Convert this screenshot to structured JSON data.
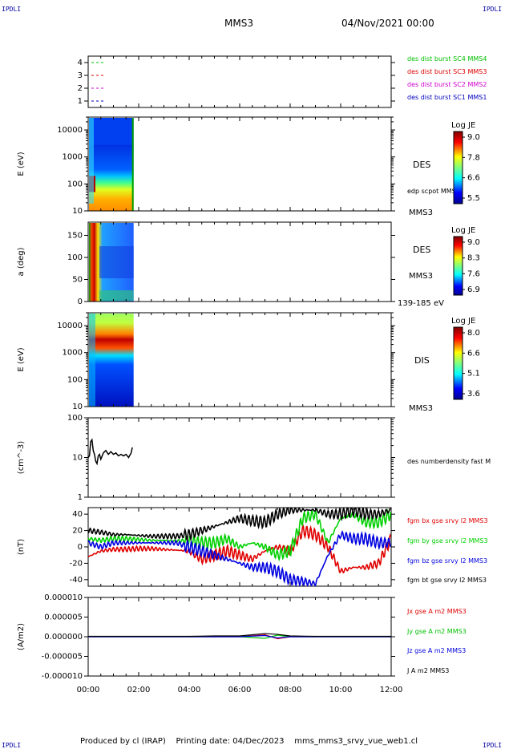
{
  "corners": {
    "tl": "IPDLI",
    "tr": "IPDLI",
    "bl": "IPDLI",
    "br": "IPDLI"
  },
  "header": {
    "spacecraft": "MMS3",
    "date": "04/Nov/2021 00:00"
  },
  "footer": {
    "producer": "Produced by cl (IRAP)",
    "printing": "Printing date: 04/Dec/2023",
    "file": "mms_mms3_srvy_vue_web1.cl"
  },
  "colors": {
    "mms1": "#0000c0",
    "mms2": "#d000d0",
    "mms3": "#e00000",
    "mms4": "#00c000",
    "bx": "#e00000",
    "by": "#00d000",
    "bz": "#0000e0",
    "bt": "#000000"
  },
  "chart_data": [
    {
      "type": "scatter",
      "panel": "burst",
      "x": [
        0,
        12
      ],
      "yticks": [
        "1",
        "2",
        "3",
        "4"
      ],
      "ylim": [
        0.5,
        4.5
      ],
      "series": [
        {
          "name": "des dist burst SC1 MMS1",
          "y": 1,
          "color": "#0000c0"
        },
        {
          "name": "des dist burst SC2 MMS2",
          "y": 2,
          "color": "#d000d0"
        },
        {
          "name": "des dist burst SC3 MMS3",
          "y": 3,
          "color": "#e00000"
        },
        {
          "name": "des dist burst SC4 MMS4",
          "y": 4,
          "color": "#00c000"
        }
      ]
    },
    {
      "type": "heatmap",
      "panel": "des-energy",
      "ylabel": "E (eV)",
      "yscale": "log",
      "ylim": [
        10,
        30000
      ],
      "yticks": [
        "10",
        "100",
        "1000",
        "10000"
      ],
      "data_range_hours": [
        0,
        1.8
      ],
      "label": "DES",
      "sublabel": "MMS3",
      "overlay_label": "edp scpot MMS3",
      "colorbar": {
        "title": "Log JE",
        "ticks": [
          "9.0",
          "7.8",
          "6.6",
          "5.5"
        ]
      }
    },
    {
      "type": "heatmap",
      "panel": "des-pitch",
      "ylabel": "a (deg)",
      "ylim": [
        0,
        180
      ],
      "yticks": [
        "0",
        "50",
        "100",
        "150"
      ],
      "data_range_hours": [
        0,
        1.8
      ],
      "label": "DES",
      "sublabel": "MMS3",
      "energy_range": "139-185 eV",
      "colorbar": {
        "title": "Log JE",
        "ticks": [
          "9.0",
          "8.3",
          "7.6",
          "6.9"
        ]
      }
    },
    {
      "type": "heatmap",
      "panel": "dis-energy",
      "ylabel": "E (eV)",
      "yscale": "log",
      "ylim": [
        10,
        30000
      ],
      "yticks": [
        "10",
        "100",
        "1000",
        "10000"
      ],
      "data_range_hours": [
        0,
        1.8
      ],
      "label": "DIS",
      "sublabel": "MMS3",
      "colorbar": {
        "title": "Log JE",
        "ticks": [
          "8.0",
          "6.6",
          "5.1",
          "3.6"
        ]
      }
    },
    {
      "type": "line",
      "panel": "density",
      "ylabel": "(cm^-3)",
      "yscale": "log",
      "ylim": [
        1,
        100
      ],
      "yticks": [
        "1",
        "10",
        "100"
      ],
      "series": [
        {
          "name": "des numberdensity fast M",
          "color": "#000000",
          "x": [
            0,
            0.05,
            0.1,
            0.15,
            0.2,
            0.25,
            0.3,
            0.35,
            0.4,
            0.45,
            0.5,
            0.6,
            0.7,
            0.8,
            0.9,
            1.0,
            1.1,
            1.2,
            1.3,
            1.4,
            1.5,
            1.6,
            1.7,
            1.75
          ],
          "y": [
            10,
            11,
            25,
            28,
            15,
            12,
            8,
            7,
            11,
            12,
            9,
            13,
            15,
            12,
            14,
            12,
            13,
            11,
            12,
            11,
            12,
            10,
            13,
            18
          ]
        }
      ]
    },
    {
      "type": "line",
      "panel": "fgm",
      "ylabel": "(nT)",
      "ylim": [
        -48,
        48
      ],
      "yticks": [
        "-40",
        "-20",
        "0",
        "20",
        "40"
      ],
      "x": [
        0,
        0.5,
        1,
        1.5,
        2,
        2.5,
        3,
        3.5,
        4,
        4.5,
        5,
        5.5,
        6,
        6.5,
        7,
        7.5,
        8,
        8.5,
        9,
        9.5,
        10,
        10.5,
        11,
        11.5,
        12
      ],
      "series": [
        {
          "name": "fgm bx gse srvy l2 MMS3",
          "color": "#e00000",
          "y": [
            -12,
            -5,
            -3,
            -3,
            -2,
            -2,
            -3,
            -4,
            -5,
            -15,
            -10,
            -5,
            -10,
            -15,
            -5,
            0,
            -5,
            20,
            15,
            0,
            -30,
            -25,
            -25,
            -20,
            10
          ]
        },
        {
          "name": "fgm by gse srvy l2 MMS3",
          "color": "#00d000",
          "y": [
            10,
            8,
            10,
            10,
            9,
            8,
            8,
            7,
            8,
            5,
            5,
            10,
            0,
            5,
            0,
            -10,
            -5,
            35,
            40,
            5,
            35,
            40,
            30,
            30,
            40
          ]
        },
        {
          "name": "fgm bz gse srvy l2 MMS3",
          "color": "#0000e0",
          "y": [
            5,
            0,
            5,
            5,
            5,
            5,
            5,
            5,
            0,
            -5,
            -10,
            -15,
            -20,
            -25,
            -25,
            -30,
            -40,
            -42,
            -45,
            -10,
            15,
            10,
            10,
            5,
            5
          ]
        },
        {
          "name": "fgm bt gse srvy l2 MMS3",
          "color": "#000000",
          "y": [
            20,
            18,
            15,
            15,
            14,
            13,
            13,
            13,
            15,
            20,
            25,
            30,
            35,
            32,
            30,
            40,
            45,
            45,
            45,
            40,
            40,
            45,
            40,
            40,
            45
          ]
        }
      ]
    },
    {
      "type": "line",
      "panel": "current",
      "ylabel": "(A/m2)",
      "ylim": [
        -1e-05,
        1e-05
      ],
      "yticks": [
        "-0.000010",
        "-0.000005",
        "0.000000",
        "0.000005",
        "0.000010"
      ],
      "x": [
        0,
        1,
        2,
        3,
        4,
        5,
        6,
        7,
        7.5,
        8,
        9,
        10,
        11,
        12
      ],
      "series": [
        {
          "name": "Jx gse A m2 MMS3",
          "color": "#e00000",
          "y": [
            0,
            0,
            0,
            0,
            0,
            0,
            0,
            5e-07,
            -5e-07,
            0,
            0,
            0,
            0,
            0
          ]
        },
        {
          "name": "Jy gse A m2 MMS3",
          "color": "#00c000",
          "y": [
            0,
            0,
            0,
            0,
            0,
            0,
            0,
            -4e-07,
            4e-07,
            0,
            0,
            0,
            0,
            0
          ]
        },
        {
          "name": "Jz gse A m2 MMS3",
          "color": "#0000e0",
          "y": [
            0,
            0,
            0,
            0,
            0,
            0,
            0,
            3e-07,
            -3e-07,
            0,
            0,
            0,
            0,
            0
          ]
        },
        {
          "name": "J A m2 MMS3",
          "color": "#000000",
          "y": [
            1e-07,
            1e-07,
            1e-07,
            1e-07,
            1e-07,
            2e-07,
            2e-07,
            8e-07,
            6e-07,
            2e-07,
            1e-07,
            1e-07,
            1e-07,
            1e-07
          ]
        }
      ]
    }
  ],
  "time_axis": {
    "ticks": [
      "00:00",
      "02:00",
      "04:00",
      "06:00",
      "08:00",
      "10:00",
      "12:00"
    ],
    "range_hours": [
      0,
      12
    ]
  }
}
